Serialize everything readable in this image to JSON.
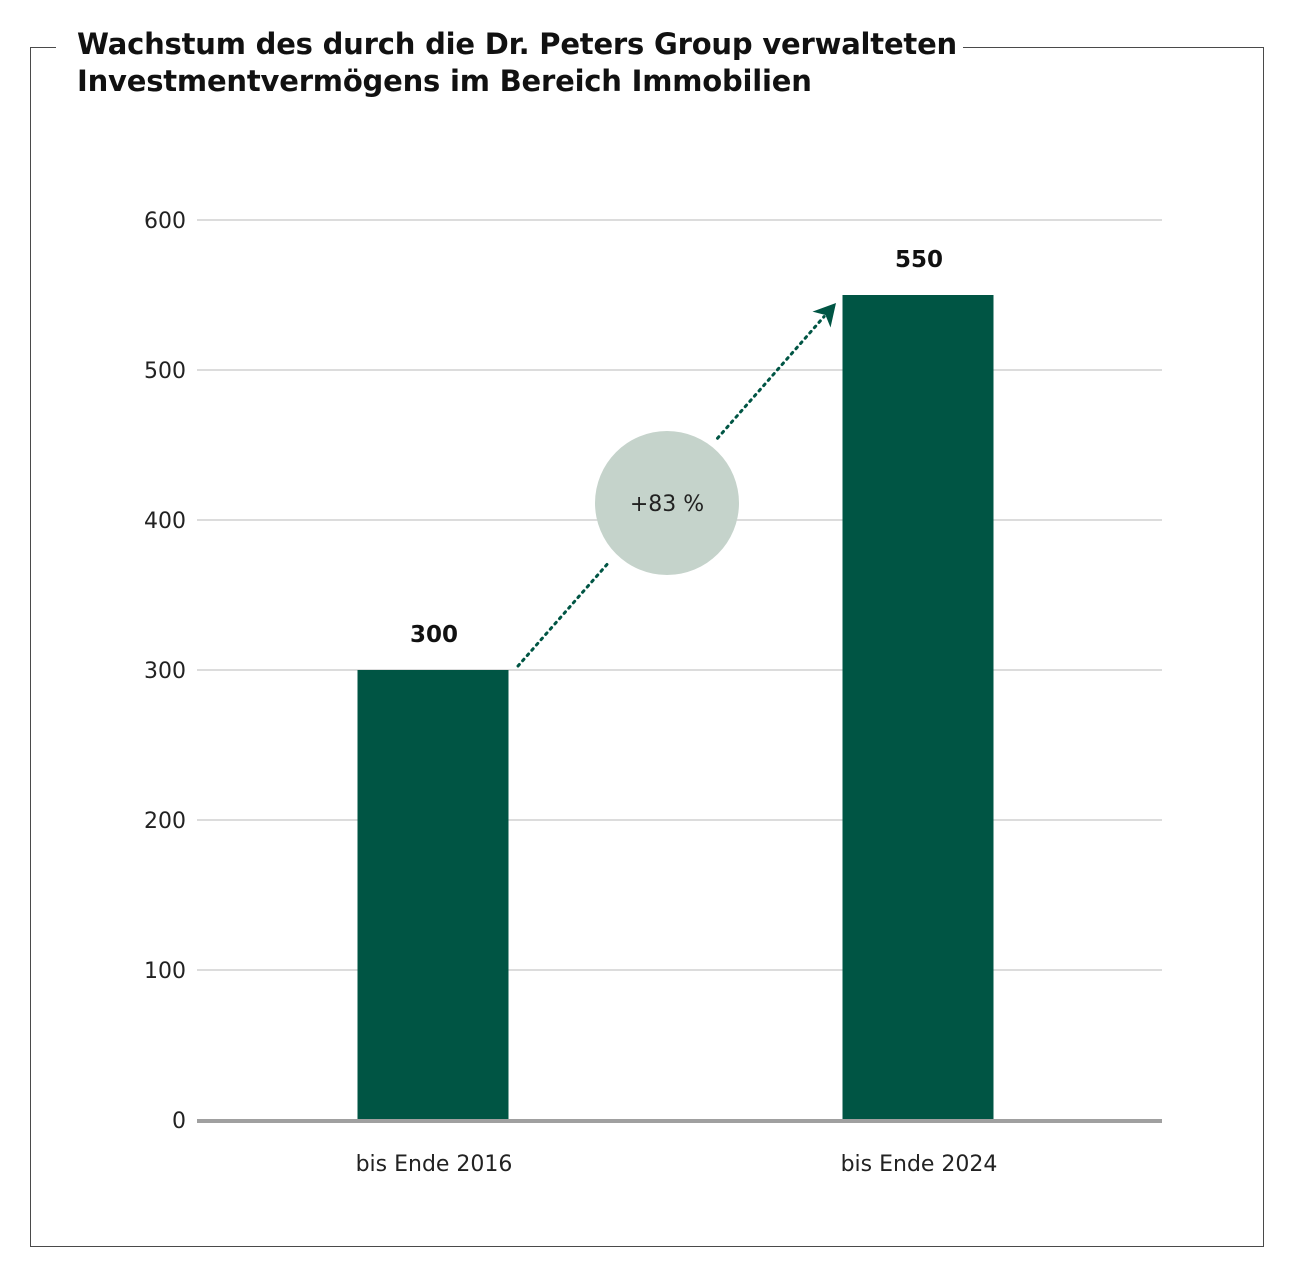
{
  "chart_data": {
    "type": "bar",
    "title": "Wachstum des durch die Dr. Peters Group verwalteten Investmentvermögens im Bereich Immobilien",
    "categories": [
      "bis Ende 2016",
      "bis Ende 2024"
    ],
    "values": [
      300,
      550
    ],
    "value_labels": [
      "300",
      "550"
    ],
    "yticks": [
      0,
      100,
      200,
      300,
      400,
      500,
      600
    ],
    "ylim": [
      0,
      600
    ],
    "grid": true,
    "legend": "none",
    "annotation": {
      "text": "+83 %",
      "from": "bis Ende 2016",
      "to": "bis Ende 2024"
    },
    "colors": {
      "bar": "#005544",
      "grid": "#c8c8c8",
      "baseline": "#a0a0a0",
      "badge": "#c5d3cb",
      "arrow": "#005544"
    }
  }
}
